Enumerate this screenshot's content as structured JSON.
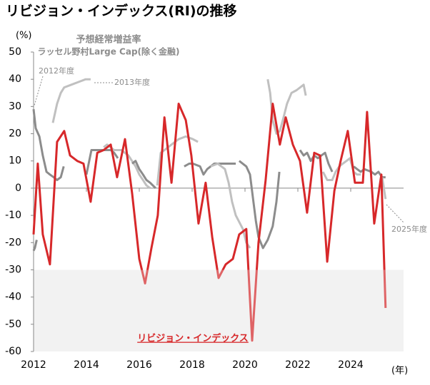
{
  "chart_data": {
    "type": "line",
    "title": "リビジョン・インデックス(RI)の推移",
    "y_label": "(%)",
    "x_label": "(年)",
    "xlim": [
      2012,
      2026
    ],
    "xticks": [
      2012,
      2014,
      2016,
      2018,
      2020,
      2022,
      2024
    ],
    "ylim": [
      -60,
      50
    ],
    "yticks": [
      -60,
      -50,
      -40,
      -30,
      -20,
      -10,
      0,
      10,
      20,
      30,
      40,
      50
    ],
    "shade": [
      -60,
      -30
    ],
    "annotations": [
      "2012年度",
      "2013年度",
      "2025年度"
    ],
    "series": [
      {
        "name": "予想経常増益率",
        "universe": "ラッセル野村Large Cap(除く金融)",
        "color": "#8c8c8c",
        "piece_colors": [
          "#8c8c8c",
          "#8c8c8c",
          "#c0c0c0",
          "#8c8c8c",
          "#c0c0c0",
          "#8c8c8c",
          "#c0c0c0",
          "#8c8c8c",
          "#c0c0c0",
          "#8c8c8c",
          "#c0c0c0",
          "#8c8c8c",
          "#c0c0c0",
          "#8c8c8c",
          "#c0c0c0"
        ],
        "x": [
          2012.0,
          2012.05,
          2012.12,
          null,
          2012.0,
          2012.08,
          2012.22,
          2012.35,
          2012.49,
          2012.62,
          2012.76,
          2012.89,
          2013.03,
          2013.14,
          null,
          2012.73,
          2012.89,
          2013.03,
          2013.16,
          2013.43,
          2013.7,
          2013.97,
          2014.16,
          null,
          2014.0,
          2014.19,
          2014.38,
          2014.65,
          2014.92,
          2015.05,
          2015.19,
          null,
          2014.65,
          2014.78,
          2015.05,
          2015.32,
          2015.59,
          2015.86,
          2016.0,
          2016.14,
          2016.27,
          2016.41,
          null,
          2015.73,
          2015.86,
          2016.0,
          2016.14,
          2016.27,
          2016.41,
          2016.62,
          null,
          2016.68,
          2016.81,
          2016.95,
          2017.22,
          2017.49,
          2017.76,
          2018.03,
          2018.22,
          null,
          2017.7,
          2017.89,
          2018.03,
          2018.3,
          2018.43,
          2018.57,
          2018.7,
          2018.84,
          2019.11,
          2019.38,
          2019.65,
          null,
          2018.7,
          2018.97,
          2019.24,
          2019.38,
          2019.51,
          2019.65,
          2019.92,
          2020.05,
          2020.19,
          null,
          2019.78,
          2020.05,
          2020.19,
          2020.32,
          2020.41,
          2020.51,
          2020.68,
          2020.86,
          2021.05,
          2021.19,
          2021.3,
          null,
          2020.86,
          2020.95,
          2021.05,
          2021.19,
          2021.32,
          2021.46,
          2021.59,
          2021.76,
          2021.95,
          2022.22,
          2022.3,
          null,
          2022.08,
          2022.22,
          2022.35,
          2022.49,
          2022.62,
          2022.76,
          2022.89,
          2023.03,
          2023.16,
          2023.3,
          null,
          2022.95,
          2023.11,
          2023.3,
          2023.43,
          2023.57,
          2023.7,
          2023.84,
          2023.97,
          2024.11,
          2024.24,
          2024.38,
          null,
          2024.11,
          2024.24,
          2024.38,
          2024.51,
          2024.78,
          2024.92,
          2025.05,
          2025.19,
          2025.32,
          null,
          2025.19,
          2025.32
        ],
        "values": [
          -23,
          -22,
          -19,
          null,
          29,
          22,
          19,
          12,
          6,
          5,
          4,
          3,
          4,
          8,
          null,
          24,
          31,
          35,
          37,
          38,
          39,
          40,
          40,
          null,
          5,
          14,
          14,
          14,
          14,
          13,
          11,
          null,
          15,
          16,
          14,
          14,
          12,
          8,
          5,
          3,
          1,
          0,
          null,
          9,
          10,
          7,
          5,
          3,
          2,
          0,
          null,
          1,
          13,
          14,
          16,
          18,
          19,
          18,
          17,
          null,
          8,
          9,
          9,
          8,
          5,
          7,
          8,
          9,
          9,
          9,
          9,
          null,
          8,
          9,
          7,
          2,
          -5,
          -10,
          -15,
          -20,
          -22,
          null,
          10,
          8,
          5,
          -5,
          -12,
          -18,
          -22,
          -19,
          -14,
          -5,
          6,
          null,
          40,
          35,
          25,
          20,
          21,
          26,
          31,
          35,
          36,
          38,
          34,
          null,
          14,
          12,
          13,
          10,
          12,
          11,
          12,
          13,
          9,
          6,
          null,
          6,
          3,
          3,
          6,
          8,
          9,
          10,
          11,
          6,
          5,
          5,
          null,
          8,
          7,
          6,
          7,
          6,
          5,
          6,
          4,
          4,
          null,
          4,
          -4
        ]
      },
      {
        "name": "リビジョン・インデックス",
        "color": "#d7282a",
        "x": [
          2012.0,
          2012.16,
          2012.35,
          2012.62,
          2012.89,
          2013.16,
          2013.38,
          2013.65,
          2013.89,
          2014.16,
          2014.41,
          2014.65,
          2014.92,
          2015.16,
          2015.46,
          2015.73,
          2016.0,
          2016.22,
          2016.46,
          2016.7,
          2016.95,
          2017.22,
          2017.49,
          2017.76,
          2017.97,
          2018.24,
          2018.51,
          2018.76,
          2019.0,
          2019.27,
          2019.54,
          2019.78,
          2020.05,
          2020.27,
          2020.51,
          2020.78,
          2021.05,
          2021.32,
          2021.54,
          2021.81,
          2022.08,
          2022.35,
          2022.62,
          2022.84,
          2023.11,
          2023.38,
          2023.62,
          2023.89,
          2024.16,
          2024.46,
          2024.62,
          2024.89,
          2025.16,
          2025.32
        ],
        "values": [
          -17,
          9,
          -17,
          -28,
          17,
          21,
          12,
          10,
          9,
          -5,
          13,
          14,
          16,
          4,
          18,
          -2,
          -26,
          -35,
          -22,
          -10,
          26,
          2,
          31,
          25,
          12,
          -13,
          2,
          -18,
          -33,
          -28,
          -26,
          -17,
          -15,
          -56,
          -20,
          3,
          31,
          16,
          26,
          16,
          10,
          -9,
          13,
          12,
          -27,
          -1,
          10,
          21,
          2,
          2,
          28,
          -13,
          5,
          -44
        ]
      }
    ]
  }
}
